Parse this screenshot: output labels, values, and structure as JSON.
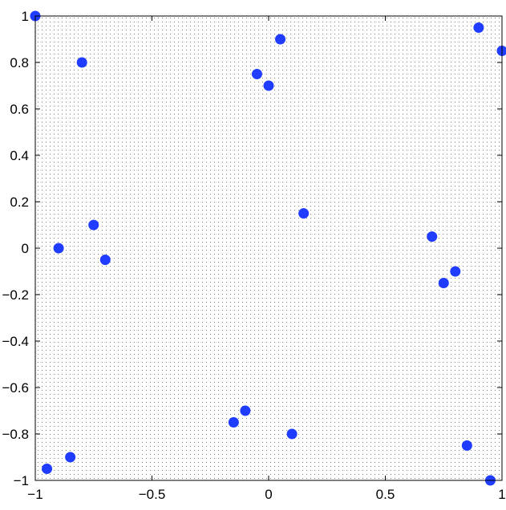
{
  "chart_data": {
    "type": "scatter",
    "title": "",
    "xlabel": "",
    "ylabel": "",
    "xlim": [
      -1,
      1
    ],
    "ylim": [
      -1,
      1
    ],
    "x_ticks": [
      -1,
      -0.5,
      0,
      0.5,
      1
    ],
    "x_tick_labels": [
      "−1",
      "−0.5",
      "0",
      "0.5",
      "1"
    ],
    "y_ticks": [
      1,
      0.8,
      0.6,
      0.4,
      0.2,
      0,
      -0.2,
      -0.4,
      -0.6,
      -0.8,
      -1
    ],
    "y_tick_labels": [
      "1",
      "0.8",
      "0.6",
      "0.4",
      "0.2",
      "0",
      "−0.2",
      "−0.4",
      "−0.6",
      "−0.8",
      "−1"
    ],
    "grid": "dense dotted background",
    "legend": "none",
    "marker_color": "#1f3cff",
    "series": [
      {
        "points": [
          {
            "x": -1.0,
            "y": 1.0
          },
          {
            "x": -0.8,
            "y": 0.8
          },
          {
            "x": -0.05,
            "y": 0.75
          },
          {
            "x": 0.0,
            "y": 0.7
          },
          {
            "x": 0.05,
            "y": 0.9
          },
          {
            "x": 0.9,
            "y": 0.95
          },
          {
            "x": 1.0,
            "y": 0.85
          },
          {
            "x": 0.15,
            "y": 0.15
          },
          {
            "x": -0.75,
            "y": 0.1
          },
          {
            "x": -0.9,
            "y": 0.0
          },
          {
            "x": -0.7,
            "y": -0.05
          },
          {
            "x": 0.7,
            "y": 0.05
          },
          {
            "x": 0.8,
            "y": -0.1
          },
          {
            "x": 0.75,
            "y": -0.15
          },
          {
            "x": -0.15,
            "y": -0.75
          },
          {
            "x": -0.1,
            "y": -0.7
          },
          {
            "x": 0.1,
            "y": -0.8
          },
          {
            "x": 0.85,
            "y": -0.85
          },
          {
            "x": -0.95,
            "y": -0.95
          },
          {
            "x": -0.85,
            "y": -0.9
          },
          {
            "x": 0.95,
            "y": -1.0
          }
        ]
      }
    ]
  }
}
